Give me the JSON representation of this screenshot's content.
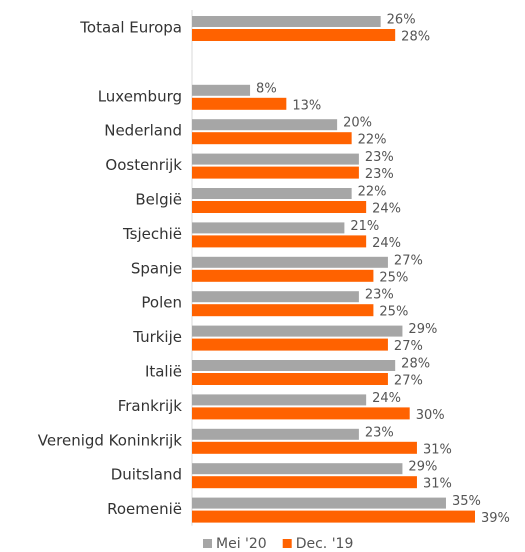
{
  "chart_data": {
    "type": "bar",
    "orientation": "horizontal",
    "categories": [
      "Totaal Europa",
      null,
      "Luxemburg",
      "Nederland",
      "Oostenrijk",
      "België",
      "Tsjechië",
      "Spanje",
      "Polen",
      "Turkije",
      "Italië",
      "Frankrijk",
      "Verenigd Koninkrijk",
      "Duitsland",
      "Roemenië"
    ],
    "series": [
      {
        "name": "Mei '20",
        "color": "#a6a6a6",
        "values": [
          26,
          null,
          8,
          20,
          23,
          22,
          21,
          27,
          23,
          29,
          28,
          24,
          23,
          29,
          35
        ],
        "value_labels": [
          "26%",
          null,
          "8%",
          "20%",
          "23%",
          "22%",
          "21%",
          "27%",
          "23%",
          "29%",
          "28%",
          "24%",
          "23%",
          "29%",
          "35%"
        ]
      },
      {
        "name": "Dec. '19",
        "color": "#ff6200",
        "values": [
          28,
          null,
          13,
          22,
          23,
          24,
          24,
          25,
          25,
          27,
          27,
          30,
          31,
          31,
          39
        ],
        "value_labels": [
          "28%",
          null,
          "13%",
          "22%",
          "23%",
          "24%",
          "24%",
          "25%",
          "25%",
          "27%",
          "27%",
          "30%",
          "31%",
          "31%",
          "39%"
        ]
      }
    ],
    "legend": "bottom"
  }
}
